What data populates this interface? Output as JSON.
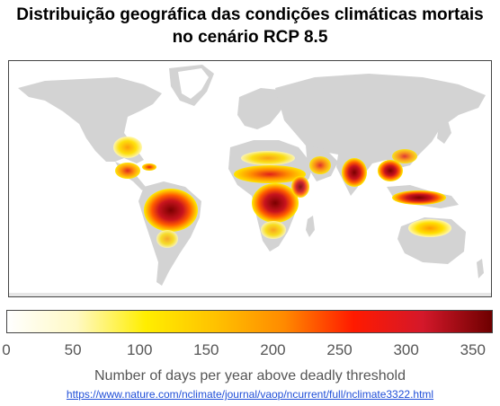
{
  "title_line1": "Distribuição geográfica das condições climáticas mortais",
  "title_line2": "no cenário RCP 8.5",
  "colorbar": {
    "ticks": [
      "0",
      "50",
      "100",
      "150",
      "200",
      "250",
      "300",
      "350"
    ],
    "label": "Number of days per year above deadly threshold",
    "min": 0,
    "max": 365,
    "gradient_colors": [
      "#ffffff",
      "#fff9c4",
      "#ffee00",
      "#ffc200",
      "#ff8a00",
      "#ff1a00",
      "#d4182a",
      "#6e0000"
    ]
  },
  "map": {
    "land_color": "#d3d3d3",
    "ocean_color": "#ffffff"
  },
  "source_url": "https://www.nature.com/nclimate/journal/vaop/ncurrent/full/nclimate3322.html"
}
